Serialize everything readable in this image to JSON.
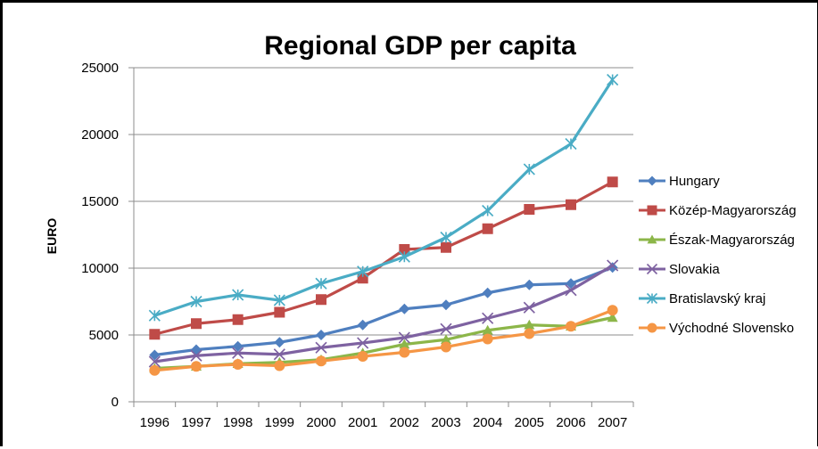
{
  "chart_data": {
    "type": "line",
    "title": "Regional GDP per capita",
    "xlabel": "",
    "ylabel": "EURO",
    "ylim": [
      0,
      25000
    ],
    "yticks": [
      0,
      5000,
      10000,
      15000,
      20000,
      25000
    ],
    "grid": true,
    "legend_position": "right",
    "categories": [
      "1996",
      "1997",
      "1998",
      "1999",
      "2000",
      "2001",
      "2002",
      "2003",
      "2004",
      "2005",
      "2006",
      "2007"
    ],
    "series": [
      {
        "name": "Hungary",
        "color": "#4F7FBF",
        "marker": "diamond",
        "values": [
          3500,
          3900,
          4150,
          4450,
          5000,
          5750,
          6950,
          7250,
          8150,
          8750,
          8850,
          10050
        ]
      },
      {
        "name": "Közép-Magyarország",
        "color": "#BF4B48",
        "marker": "square",
        "values": [
          5050,
          5850,
          6150,
          6700,
          7650,
          9250,
          11400,
          11550,
          12950,
          14400,
          14750,
          16450
        ]
      },
      {
        "name": "Észak-Magyarország",
        "color": "#8CB649",
        "marker": "triangle",
        "values": [
          2500,
          2650,
          2850,
          2950,
          3150,
          3650,
          4300,
          4650,
          5350,
          5750,
          5650,
          6300
        ]
      },
      {
        "name": "Slovakia",
        "color": "#7E62A1",
        "marker": "x",
        "values": [
          3000,
          3450,
          3650,
          3550,
          4050,
          4400,
          4800,
          5450,
          6250,
          7050,
          8350,
          10200
        ]
      },
      {
        "name": "Bratislavský kraj",
        "color": "#4AACC5",
        "marker": "star",
        "values": [
          6450,
          7500,
          8000,
          7600,
          8850,
          9750,
          10850,
          12300,
          14300,
          17400,
          19300,
          24100
        ]
      },
      {
        "name": "Východné Slovensko",
        "color": "#F59645",
        "marker": "circle",
        "values": [
          2350,
          2650,
          2800,
          2700,
          3050,
          3400,
          3700,
          4100,
          4700,
          5100,
          5650,
          6850
        ]
      }
    ]
  }
}
